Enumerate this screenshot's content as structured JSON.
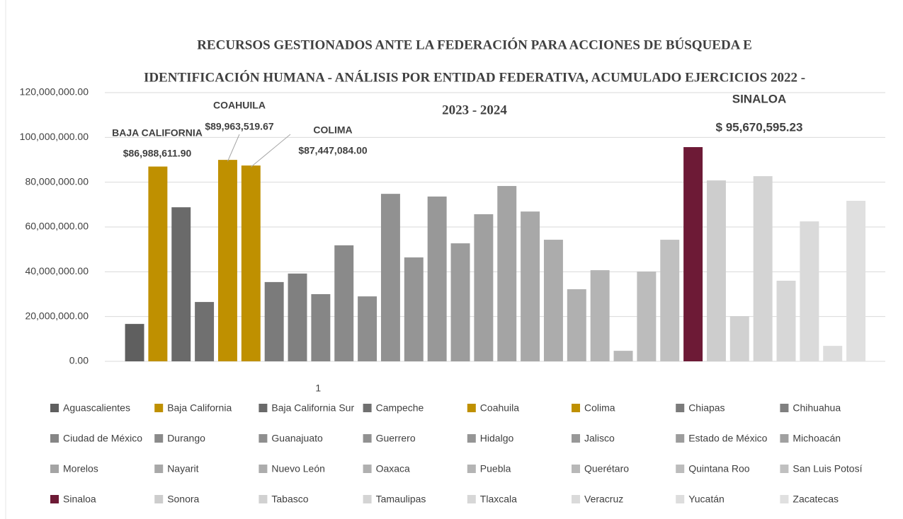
{
  "chart_data": {
    "type": "bar",
    "title": [
      "RECURSOS GESTIONADOS ANTE LA FEDERACIÓN PARA ACCIONES DE BÚSQUEDA E",
      "IDENTIFICACIÓN HUMANA - ANÁLISIS POR ENTIDAD FEDERATIVA, ACUMULADO EJERCICIOS 2022 -",
      "2023 - 2024"
    ],
    "categories": [
      "1"
    ],
    "ylim": [
      0,
      120000000
    ],
    "yticks": [
      {
        "value": 0,
        "label": "0.00"
      },
      {
        "value": 20000000,
        "label": "20,000,000.00"
      },
      {
        "value": 40000000,
        "label": "40,000,000.00"
      },
      {
        "value": 60000000,
        "label": "60,000,000.00"
      },
      {
        "value": 80000000,
        "label": "80,000,000.00"
      },
      {
        "value": 100000000,
        "label": "100,000,000.00"
      },
      {
        "value": 120000000,
        "label": "120,000,000.00"
      }
    ],
    "grid": true,
    "legend": "bottom",
    "series": [
      {
        "name": "Aguascalientes",
        "color": "#5f5f5f",
        "values": [
          16700000
        ]
      },
      {
        "name": "Baja California",
        "color": "#bf9000",
        "values": [
          86988611.9
        ],
        "value_labels": [
          "$86,988,611.90"
        ],
        "annotation": "BAJA CALIFORNIA"
      },
      {
        "name": "Baja California Sur",
        "color": "#6a6a6a",
        "values": [
          68800000
        ]
      },
      {
        "name": "Campeche",
        "color": "#707070",
        "values": [
          26500000
        ]
      },
      {
        "name": "Coahuila",
        "color": "#bf9000",
        "values": [
          89963519.67
        ],
        "value_labels": [
          "$89,963,519.67"
        ],
        "annotation": "COAHUILA"
      },
      {
        "name": "Colima",
        "color": "#bf9000",
        "values": [
          87447084.0
        ],
        "value_labels": [
          "$87,447,084.00"
        ],
        "annotation": "COLIMA"
      },
      {
        "name": "Chiapas",
        "color": "#7b7b7b",
        "values": [
          35400000
        ]
      },
      {
        "name": "Chihuahua",
        "color": "#808080",
        "values": [
          39200000
        ]
      },
      {
        "name": "Ciudad de México",
        "color": "#868686",
        "values": [
          30000000
        ]
      },
      {
        "name": "Durango",
        "color": "#8a8a8a",
        "values": [
          51800000
        ]
      },
      {
        "name": "Guanajuato",
        "color": "#8e8e8e",
        "values": [
          29000000
        ]
      },
      {
        "name": "Guerrero",
        "color": "#919191",
        "values": [
          74800000
        ]
      },
      {
        "name": "Hidalgo",
        "color": "#959595",
        "values": [
          46400000
        ]
      },
      {
        "name": "Jalisco",
        "color": "#989898",
        "values": [
          73600000
        ]
      },
      {
        "name": "Estado de México",
        "color": "#9c9c9c",
        "values": [
          52700000
        ]
      },
      {
        "name": "Michoacán",
        "color": "#a0a0a0",
        "values": [
          65700000
        ]
      },
      {
        "name": "Morelos",
        "color": "#a4a4a4",
        "values": [
          78300000
        ]
      },
      {
        "name": "Nayarit",
        "color": "#a8a8a8",
        "values": [
          66900000
        ]
      },
      {
        "name": "Nuevo León",
        "color": "#acacac",
        "values": [
          54300000
        ]
      },
      {
        "name": "Oaxaca",
        "color": "#b0b0b0",
        "values": [
          32200000
        ]
      },
      {
        "name": "Puebla",
        "color": "#b4b4b4",
        "values": [
          40700000
        ]
      },
      {
        "name": "Querétaro",
        "color": "#b8b8b8",
        "values": [
          4700000
        ]
      },
      {
        "name": "Quintana Roo",
        "color": "#bcbcbc",
        "values": [
          40100000
        ]
      },
      {
        "name": "San Luis Potosí",
        "color": "#c0c0c0",
        "values": [
          54300000
        ]
      },
      {
        "name": "Sinaloa",
        "color": "#6d1a36",
        "values": [
          95670595.23
        ],
        "value_labels": [
          "$ 95,670,595.23"
        ],
        "annotation": "SINALOA"
      },
      {
        "name": "Sonora",
        "color": "#cdcdcd",
        "values": [
          80800000
        ]
      },
      {
        "name": "Tabasco",
        "color": "#d1d1d1",
        "values": [
          20200000
        ]
      },
      {
        "name": "Tamaulipas",
        "color": "#d4d4d4",
        "values": [
          82700000
        ]
      },
      {
        "name": "Tlaxcala",
        "color": "#d7d7d7",
        "values": [
          36000000
        ]
      },
      {
        "name": "Veracruz",
        "color": "#dadada",
        "values": [
          62500000
        ]
      },
      {
        "name": "Yucatán",
        "color": "#dddddd",
        "values": [
          6900000
        ]
      },
      {
        "name": "Zacatecas",
        "color": "#e0e0e0",
        "values": [
          71700000
        ]
      }
    ]
  }
}
